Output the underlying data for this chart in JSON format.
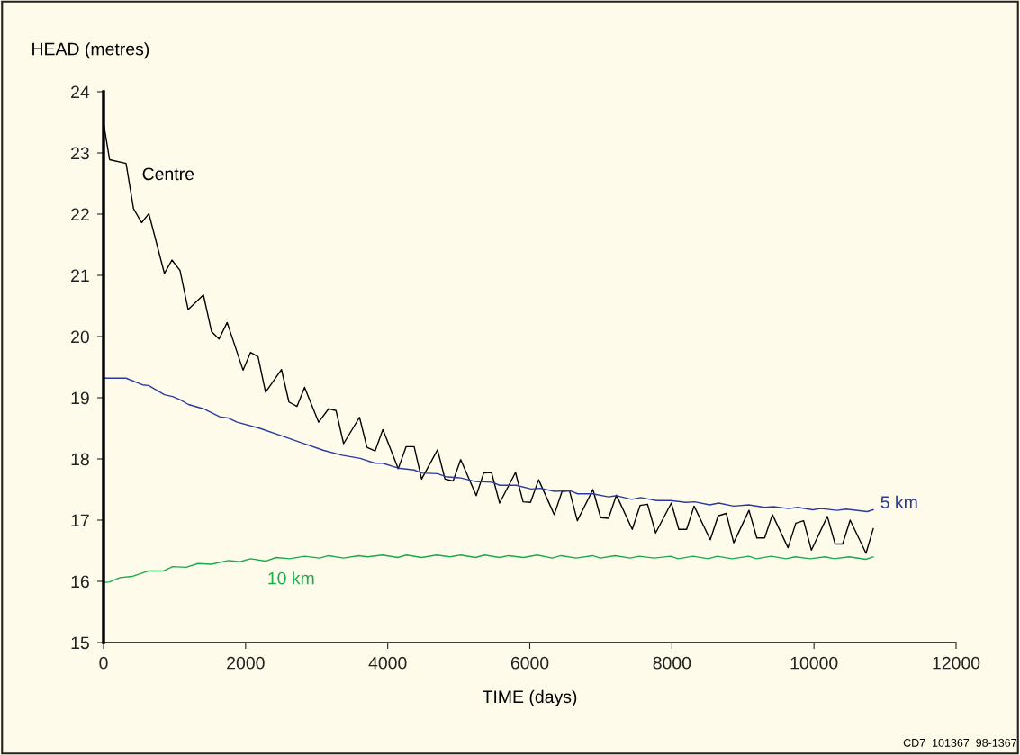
{
  "chart_data": {
    "type": "line",
    "xlabel": "TIME (days)",
    "ylabel": "HEAD (metres)",
    "xlim": [
      0,
      12000
    ],
    "xticks": [
      0,
      2000,
      4000,
      6000,
      8000,
      10000,
      12000
    ],
    "ylim": [
      15,
      24
    ],
    "yticks": [
      15,
      16,
      17,
      18,
      19,
      20,
      21,
      22,
      23,
      24
    ],
    "grid": false,
    "legend": false,
    "marker": "none",
    "line_style": "solid",
    "annotations": [
      "CD7  101367  98-1367"
    ],
    "series": [
      {
        "name": "Centre",
        "color": "#000000",
        "x": [
          0,
          85,
          317,
          422,
          536,
          638,
          857,
          963,
          1077,
          1191,
          1406,
          1521,
          1626,
          1740,
          1964,
          2069,
          2175,
          2281,
          2505,
          2610,
          2724,
          2830,
          3028,
          3168,
          3273,
          3379,
          3603,
          3708,
          3822,
          3932,
          4148,
          4258,
          4372,
          4477,
          4701,
          4806,
          4920,
          5027,
          5246,
          5351,
          5461,
          5575,
          5799,
          5905,
          6010,
          6124,
          6344,
          6454,
          6559,
          6669,
          6889,
          6997,
          7108,
          7219,
          7442,
          7552,
          7657,
          7771,
          7992,
          8097,
          8207,
          8312,
          8540,
          8651,
          8765,
          8870,
          9085,
          9195,
          9305,
          9415,
          9634,
          9744,
          9854,
          9964,
          10188,
          10298,
          10403,
          10509,
          10732,
          10834
        ],
        "values": [
          23.49,
          22.89,
          22.83,
          22.09,
          21.86,
          22.01,
          21.03,
          21.25,
          21.08,
          20.44,
          20.68,
          20.08,
          19.96,
          20.23,
          19.45,
          19.74,
          19.67,
          19.09,
          19.46,
          18.93,
          18.86,
          19.17,
          18.6,
          18.82,
          18.79,
          18.25,
          18.68,
          18.19,
          18.13,
          18.48,
          17.84,
          18.2,
          18.2,
          17.67,
          18.15,
          17.67,
          17.64,
          17.99,
          17.4,
          17.77,
          17.78,
          17.28,
          17.78,
          17.3,
          17.29,
          17.66,
          17.09,
          17.47,
          17.48,
          16.99,
          17.5,
          17.04,
          17.03,
          17.41,
          16.85,
          17.24,
          17.26,
          16.79,
          17.28,
          16.85,
          16.85,
          17.23,
          16.68,
          17.07,
          17.11,
          16.63,
          17.16,
          16.71,
          16.71,
          17.09,
          16.55,
          16.95,
          16.99,
          16.51,
          17.06,
          16.61,
          16.61,
          17.0,
          16.46,
          16.86
        ]
      },
      {
        "name": "5 km",
        "color": "#2b3a9e",
        "x": [
          0,
          317,
          549,
          634,
          857,
          971,
          1077,
          1195,
          1406,
          1635,
          1753,
          1880,
          2200,
          2500,
          2800,
          3100,
          3358,
          3612,
          3822,
          3928,
          4148,
          4372,
          4477,
          4701,
          4815,
          5027,
          5237,
          5470,
          5575,
          5807,
          6019,
          6146,
          6348,
          6568,
          6673,
          6884,
          7108,
          7222,
          7434,
          7561,
          7784,
          7983,
          8194,
          8321,
          8532,
          8658,
          8870,
          9081,
          9305,
          9431,
          9643,
          9770,
          9981,
          10095,
          10327,
          10454,
          10749,
          10834
        ],
        "values": [
          19.32,
          19.32,
          19.21,
          19.2,
          19.05,
          19.02,
          18.97,
          18.89,
          18.82,
          18.69,
          18.67,
          18.6,
          18.5,
          18.38,
          18.26,
          18.14,
          18.06,
          18.01,
          17.93,
          17.93,
          17.85,
          17.82,
          17.77,
          17.76,
          17.71,
          17.69,
          17.63,
          17.62,
          17.57,
          17.57,
          17.51,
          17.52,
          17.47,
          17.48,
          17.43,
          17.43,
          17.38,
          17.4,
          17.34,
          17.37,
          17.32,
          17.32,
          17.29,
          17.3,
          17.25,
          17.28,
          17.23,
          17.25,
          17.21,
          17.22,
          17.19,
          17.21,
          17.17,
          17.19,
          17.16,
          17.18,
          17.14,
          17.17
        ]
      },
      {
        "name": "10 km",
        "color": "#1aaa4a",
        "x": [
          0,
          85,
          232,
          402,
          634,
          845,
          971,
          1162,
          1330,
          1521,
          1753,
          1922,
          2069,
          2281,
          2429,
          2619,
          2830,
          3041,
          3168,
          3379,
          3590,
          3716,
          3928,
          4139,
          4266,
          4477,
          4688,
          4878,
          5027,
          5237,
          5364,
          5575,
          5702,
          5913,
          6103,
          6314,
          6441,
          6652,
          6884,
          6990,
          7201,
          7413,
          7539,
          7751,
          7983,
          8088,
          8299,
          8511,
          8638,
          8849,
          9081,
          9187,
          9398,
          9609,
          9736,
          9947,
          10158,
          10285,
          10496,
          10729,
          10834
        ],
        "values": [
          15.98,
          15.99,
          16.06,
          16.08,
          16.17,
          16.17,
          16.24,
          16.23,
          16.29,
          16.28,
          16.34,
          16.32,
          16.37,
          16.33,
          16.39,
          16.37,
          16.41,
          16.38,
          16.42,
          16.38,
          16.42,
          16.4,
          16.43,
          16.39,
          16.43,
          16.39,
          16.43,
          16.4,
          16.43,
          16.39,
          16.43,
          16.39,
          16.42,
          16.39,
          16.43,
          16.38,
          16.42,
          16.38,
          16.42,
          16.38,
          16.42,
          16.38,
          16.41,
          16.38,
          16.41,
          16.37,
          16.41,
          16.37,
          16.41,
          16.37,
          16.41,
          16.37,
          16.41,
          16.37,
          16.4,
          16.37,
          16.4,
          16.37,
          16.4,
          16.36,
          16.4
        ]
      }
    ]
  }
}
